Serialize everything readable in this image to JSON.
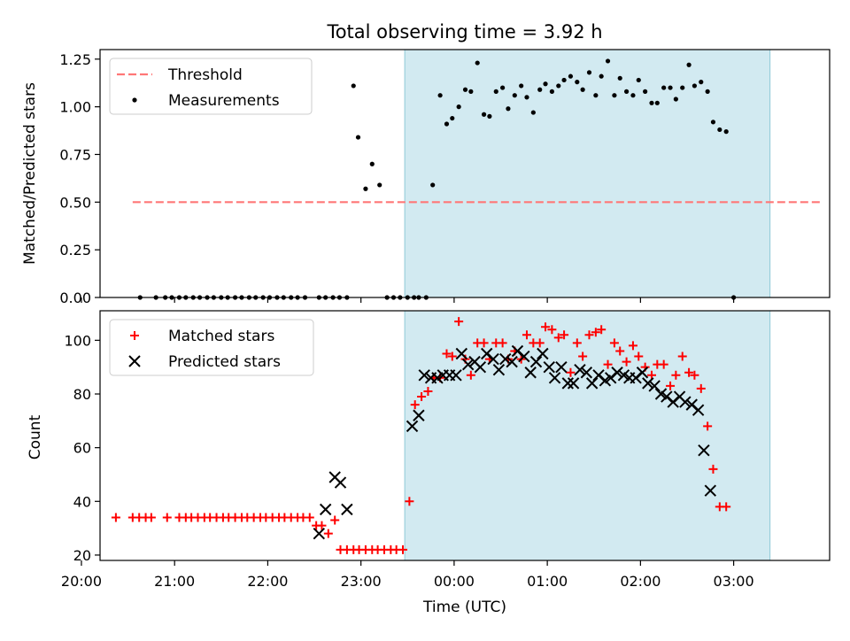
{
  "chart_data": [
    {
      "type": "scatter",
      "title": "Total observing time = 3.92 h",
      "ylabel": "Matched/Predicted stars",
      "xlabel": "",
      "x_unit": "hours from 20:00 UTC",
      "xlim": [
        20.2,
        28.03
      ],
      "ylim": [
        0,
        1.3
      ],
      "yticks": [
        "0.00",
        "0.25",
        "0.50",
        "0.75",
        "1.00",
        "1.25"
      ],
      "ytick_values": [
        0,
        0.25,
        0.5,
        0.75,
        1.0,
        1.25
      ],
      "xtick_values": [
        20,
        21,
        22,
        23,
        24,
        25,
        26,
        27
      ],
      "grid": false,
      "legend_position": "top-left",
      "shaded_span": [
        23.47,
        27.39
      ],
      "threshold": {
        "name": "Threshold",
        "value": 0.5,
        "x_range": [
          20.55,
          27.95
        ],
        "color": "#ff7777"
      },
      "series": [
        {
          "name": "Measurements",
          "color": "#000000",
          "points": [
            [
              20.63,
              0
            ],
            [
              20.8,
              0
            ],
            [
              20.9,
              0
            ],
            [
              20.97,
              0
            ],
            [
              21.05,
              0
            ],
            [
              21.12,
              0
            ],
            [
              21.2,
              0
            ],
            [
              21.27,
              0
            ],
            [
              21.35,
              0
            ],
            [
              21.42,
              0
            ],
            [
              21.5,
              0
            ],
            [
              21.57,
              0
            ],
            [
              21.65,
              0
            ],
            [
              21.72,
              0
            ],
            [
              21.8,
              0
            ],
            [
              21.87,
              0
            ],
            [
              21.95,
              0
            ],
            [
              22.02,
              0
            ],
            [
              22.1,
              0
            ],
            [
              22.17,
              0
            ],
            [
              22.25,
              0
            ],
            [
              22.32,
              0
            ],
            [
              22.4,
              0
            ],
            [
              22.55,
              0
            ],
            [
              22.62,
              0
            ],
            [
              22.7,
              0
            ],
            [
              22.77,
              0
            ],
            [
              22.85,
              0
            ],
            [
              22.92,
              1.11
            ],
            [
              22.97,
              0.84
            ],
            [
              23.05,
              0.57
            ],
            [
              23.12,
              0.7
            ],
            [
              23.2,
              0.59
            ],
            [
              23.28,
              0
            ],
            [
              23.35,
              0
            ],
            [
              23.42,
              0
            ],
            [
              23.5,
              0
            ],
            [
              23.57,
              0
            ],
            [
              23.62,
              0
            ],
            [
              23.7,
              0
            ],
            [
              23.77,
              0.59
            ],
            [
              23.85,
              1.06
            ],
            [
              23.92,
              0.91
            ],
            [
              23.98,
              0.94
            ],
            [
              24.05,
              1.0
            ],
            [
              24.12,
              1.09
            ],
            [
              24.18,
              1.08
            ],
            [
              24.25,
              1.23
            ],
            [
              24.32,
              0.96
            ],
            [
              24.38,
              0.95
            ],
            [
              24.45,
              1.08
            ],
            [
              24.52,
              1.1
            ],
            [
              24.58,
              0.99
            ],
            [
              24.65,
              1.06
            ],
            [
              24.72,
              1.11
            ],
            [
              24.78,
              1.05
            ],
            [
              24.85,
              0.97
            ],
            [
              24.92,
              1.09
            ],
            [
              24.98,
              1.12
            ],
            [
              25.05,
              1.08
            ],
            [
              25.12,
              1.11
            ],
            [
              25.18,
              1.14
            ],
            [
              25.25,
              1.16
            ],
            [
              25.32,
              1.13
            ],
            [
              25.38,
              1.09
            ],
            [
              25.45,
              1.18
            ],
            [
              25.52,
              1.06
            ],
            [
              25.58,
              1.16
            ],
            [
              25.65,
              1.24
            ],
            [
              25.72,
              1.06
            ],
            [
              25.78,
              1.15
            ],
            [
              25.85,
              1.08
            ],
            [
              25.92,
              1.06
            ],
            [
              25.98,
              1.14
            ],
            [
              26.05,
              1.08
            ],
            [
              26.12,
              1.02
            ],
            [
              26.18,
              1.02
            ],
            [
              26.25,
              1.1
            ],
            [
              26.32,
              1.1
            ],
            [
              26.38,
              1.04
            ],
            [
              26.45,
              1.1
            ],
            [
              26.52,
              1.22
            ],
            [
              26.58,
              1.11
            ],
            [
              26.65,
              1.13
            ],
            [
              26.72,
              1.08
            ],
            [
              26.78,
              0.92
            ],
            [
              26.85,
              0.88
            ],
            [
              26.92,
              0.87
            ],
            [
              27.0,
              0
            ]
          ]
        }
      ]
    },
    {
      "type": "scatter",
      "title": "",
      "ylabel": "Count",
      "xlabel": "Time (UTC)",
      "x_unit": "hours from 20:00 UTC",
      "xlim": [
        20.2,
        28.03
      ],
      "ylim": [
        18,
        111
      ],
      "yticks": [
        "20",
        "40",
        "60",
        "80",
        "100"
      ],
      "ytick_values": [
        20,
        40,
        60,
        80,
        100
      ],
      "xticks": [
        "20:00",
        "21:00",
        "22:00",
        "23:00",
        "00:00",
        "01:00",
        "02:00",
        "03:00"
      ],
      "xtick_values": [
        20,
        21,
        22,
        23,
        24,
        25,
        26,
        27
      ],
      "grid": false,
      "legend_position": "top-left",
      "shaded_span": [
        23.47,
        27.39
      ],
      "series": [
        {
          "name": "Matched stars",
          "marker": "plus",
          "color": "#ff0000",
          "points": [
            [
              20.37,
              34
            ],
            [
              20.55,
              34
            ],
            [
              20.62,
              34
            ],
            [
              20.69,
              34
            ],
            [
              20.75,
              34
            ],
            [
              20.92,
              34
            ],
            [
              21.05,
              34
            ],
            [
              21.12,
              34
            ],
            [
              21.18,
              34
            ],
            [
              21.25,
              34
            ],
            [
              21.32,
              34
            ],
            [
              21.38,
              34
            ],
            [
              21.45,
              34
            ],
            [
              21.52,
              34
            ],
            [
              21.58,
              34
            ],
            [
              21.65,
              34
            ],
            [
              21.72,
              34
            ],
            [
              21.78,
              34
            ],
            [
              21.85,
              34
            ],
            [
              21.92,
              34
            ],
            [
              21.98,
              34
            ],
            [
              22.05,
              34
            ],
            [
              22.12,
              34
            ],
            [
              22.18,
              34
            ],
            [
              22.25,
              34
            ],
            [
              22.32,
              34
            ],
            [
              22.38,
              34
            ],
            [
              22.45,
              34
            ],
            [
              22.52,
              31
            ],
            [
              22.58,
              31
            ],
            [
              22.65,
              28
            ],
            [
              22.72,
              33
            ],
            [
              22.78,
              22
            ],
            [
              22.85,
              22
            ],
            [
              22.92,
              22
            ],
            [
              22.98,
              22
            ],
            [
              23.05,
              22
            ],
            [
              23.12,
              22
            ],
            [
              23.18,
              22
            ],
            [
              23.25,
              22
            ],
            [
              23.32,
              22
            ],
            [
              23.38,
              22
            ],
            [
              23.45,
              22
            ],
            [
              23.52,
              40
            ],
            [
              23.58,
              76
            ],
            [
              23.65,
              79
            ],
            [
              23.72,
              81
            ],
            [
              23.78,
              86
            ],
            [
              23.85,
              86
            ],
            [
              23.92,
              95
            ],
            [
              23.98,
              94
            ],
            [
              24.05,
              107
            ],
            [
              24.12,
              93
            ],
            [
              24.18,
              87
            ],
            [
              24.25,
              99
            ],
            [
              24.32,
              99
            ],
            [
              24.38,
              93
            ],
            [
              24.45,
              99
            ],
            [
              24.52,
              99
            ],
            [
              24.58,
              93
            ],
            [
              24.65,
              96
            ],
            [
              24.72,
              93
            ],
            [
              24.78,
              102
            ],
            [
              24.85,
              99
            ],
            [
              24.92,
              99
            ],
            [
              24.98,
              105
            ],
            [
              25.05,
              104
            ],
            [
              25.12,
              101
            ],
            [
              25.18,
              102
            ],
            [
              25.25,
              88
            ],
            [
              25.32,
              99
            ],
            [
              25.38,
              94
            ],
            [
              25.45,
              102
            ],
            [
              25.52,
              103
            ],
            [
              25.58,
              104
            ],
            [
              25.65,
              91
            ],
            [
              25.72,
              99
            ],
            [
              25.78,
              96
            ],
            [
              25.85,
              92
            ],
            [
              25.92,
              98
            ],
            [
              25.98,
              94
            ],
            [
              26.05,
              90
            ],
            [
              26.12,
              87
            ],
            [
              26.18,
              91
            ],
            [
              26.25,
              91
            ],
            [
              26.32,
              83
            ],
            [
              26.38,
              87
            ],
            [
              26.45,
              94
            ],
            [
              26.52,
              88
            ],
            [
              26.58,
              87
            ],
            [
              26.65,
              82
            ],
            [
              26.72,
              68
            ],
            [
              26.78,
              52
            ],
            [
              26.85,
              38
            ],
            [
              26.92,
              38
            ]
          ]
        },
        {
          "name": "Predicted stars",
          "marker": "x",
          "color": "#000000",
          "points": [
            [
              22.55,
              28
            ],
            [
              22.62,
              37
            ],
            [
              22.72,
              49
            ],
            [
              22.78,
              47
            ],
            [
              22.85,
              37
            ],
            [
              23.55,
              68
            ],
            [
              23.62,
              72
            ],
            [
              23.68,
              87
            ],
            [
              23.75,
              86
            ],
            [
              23.82,
              86
            ],
            [
              23.88,
              87
            ],
            [
              23.95,
              87
            ],
            [
              24.02,
              87
            ],
            [
              24.08,
              95
            ],
            [
              24.15,
              91
            ],
            [
              24.22,
              92
            ],
            [
              24.28,
              90
            ],
            [
              24.35,
              95
            ],
            [
              24.42,
              93
            ],
            [
              24.48,
              89
            ],
            [
              24.55,
              93
            ],
            [
              24.62,
              92
            ],
            [
              24.68,
              96
            ],
            [
              24.75,
              94
            ],
            [
              24.82,
              88
            ],
            [
              24.88,
              92
            ],
            [
              24.95,
              95
            ],
            [
              25.02,
              90
            ],
            [
              25.08,
              86
            ],
            [
              25.15,
              90
            ],
            [
              25.22,
              84
            ],
            [
              25.28,
              84
            ],
            [
              25.35,
              89
            ],
            [
              25.42,
              88
            ],
            [
              25.48,
              84
            ],
            [
              25.55,
              87
            ],
            [
              25.62,
              85
            ],
            [
              25.68,
              86
            ],
            [
              25.75,
              88
            ],
            [
              25.82,
              87
            ],
            [
              25.88,
              86
            ],
            [
              25.95,
              86
            ],
            [
              26.02,
              88
            ],
            [
              26.08,
              84
            ],
            [
              26.15,
              83
            ],
            [
              26.22,
              80
            ],
            [
              26.28,
              79
            ],
            [
              26.35,
              77
            ],
            [
              26.42,
              79
            ],
            [
              26.48,
              77
            ],
            [
              26.55,
              76
            ],
            [
              26.62,
              74
            ],
            [
              26.68,
              59
            ],
            [
              26.75,
              44
            ]
          ]
        }
      ]
    }
  ]
}
